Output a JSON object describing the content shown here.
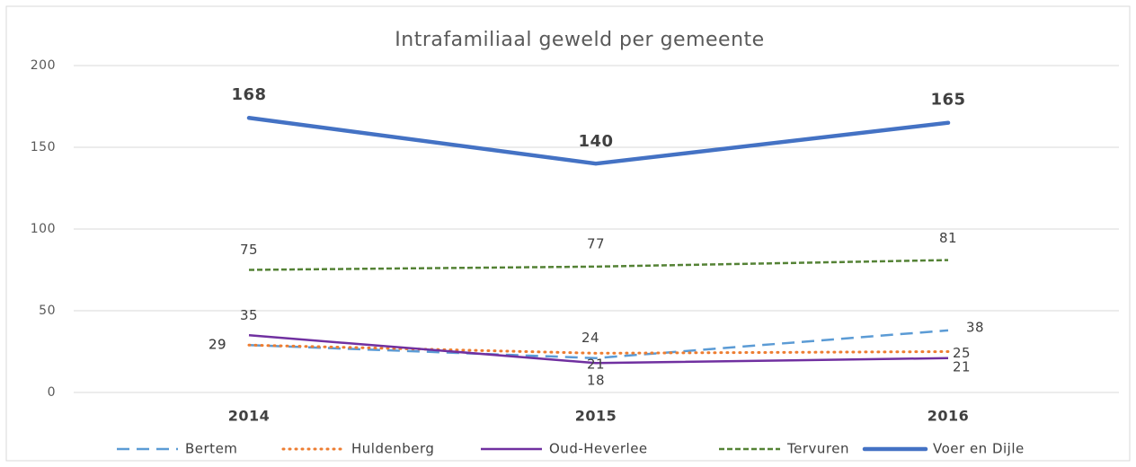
{
  "chart_data": {
    "type": "line",
    "title": "Intrafamiliaal geweld per gemeente",
    "categories": [
      "2014",
      "2015",
      "2016"
    ],
    "series": [
      {
        "name": "Bertem",
        "color": "#5b9bd5",
        "values": [
          29,
          21,
          38
        ]
      },
      {
        "name": "Huldenberg",
        "color": "#ed7d31",
        "values": [
          29,
          24,
          25
        ]
      },
      {
        "name": "Oud-Heverlee",
        "color": "#7030a0",
        "values": [
          35,
          18,
          21
        ]
      },
      {
        "name": "Tervuren",
        "color": "#548235",
        "values": [
          75,
          77,
          81
        ]
      },
      {
        "name": "Voer en Dijle",
        "color": "#4472c4",
        "values": [
          168,
          140,
          165
        ]
      }
    ],
    "ylim": [
      0,
      200
    ],
    "yticks": [
      0,
      50,
      100,
      150,
      200
    ],
    "grid": true,
    "legend": "bottom"
  }
}
